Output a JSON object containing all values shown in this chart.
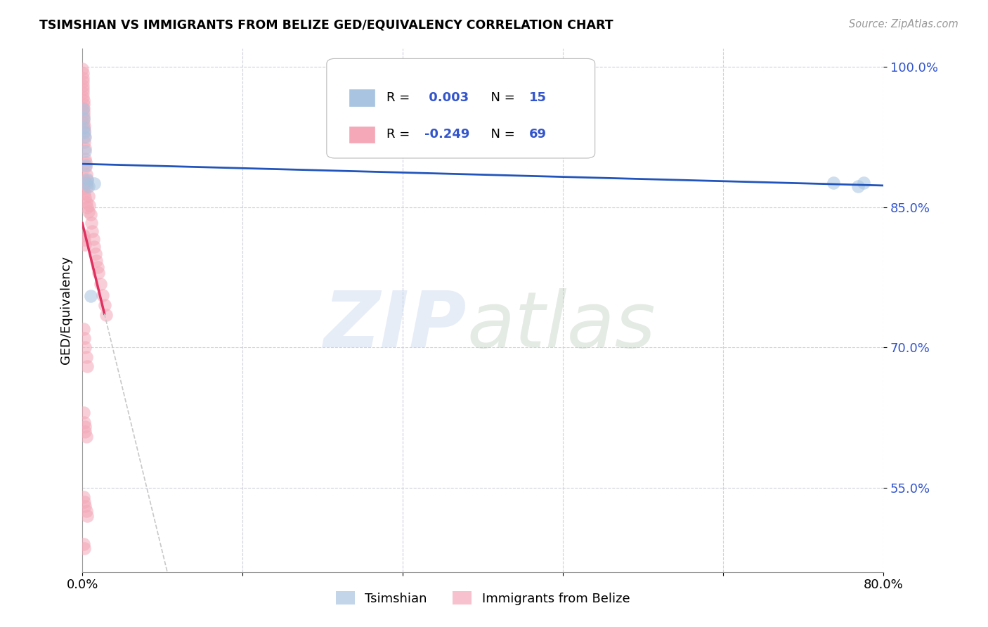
{
  "title": "TSIMSHIAN VS IMMIGRANTS FROM BELIZE GED/EQUIVALENCY CORRELATION CHART",
  "source": "Source: ZipAtlas.com",
  "ylabel": "GED/Equivalency",
  "xlim": [
    0.0,
    0.8
  ],
  "ylim": [
    0.46,
    1.02
  ],
  "ytick_labels": [
    "55.0%",
    "70.0%",
    "85.0%",
    "100.0%"
  ],
  "ytick_values": [
    0.55,
    0.7,
    0.85,
    1.0
  ],
  "xtick_labels": [
    "0.0%",
    "",
    "",
    "",
    "",
    "80.0%"
  ],
  "xtick_values": [
    0.0,
    0.16,
    0.32,
    0.48,
    0.64,
    0.8
  ],
  "blue_color": "#A8C4E0",
  "pink_color": "#F4A8B8",
  "trend_blue": "#2255BB",
  "trend_pink": "#E03060",
  "trend_gray": "#C8C8C8",
  "tsimshian_x": [
    0.0005,
    0.001,
    0.0015,
    0.002,
    0.0025,
    0.003,
    0.0035,
    0.004,
    0.005,
    0.006,
    0.008,
    0.012,
    0.75,
    0.775,
    0.78
  ],
  "tsimshian_y": [
    0.955,
    0.945,
    0.935,
    0.93,
    0.925,
    0.91,
    0.895,
    0.875,
    0.88,
    0.872,
    0.755,
    0.875,
    0.876,
    0.872,
    0.876
  ],
  "belize_x": [
    0.0002,
    0.0003,
    0.0004,
    0.0005,
    0.0006,
    0.0007,
    0.0008,
    0.0009,
    0.001,
    0.0011,
    0.0012,
    0.0013,
    0.0014,
    0.0015,
    0.0016,
    0.0017,
    0.0018,
    0.002,
    0.0022,
    0.0025,
    0.003,
    0.0032,
    0.0035,
    0.004,
    0.0045,
    0.005,
    0.006,
    0.007,
    0.008,
    0.009,
    0.01,
    0.011,
    0.012,
    0.013,
    0.014,
    0.015,
    0.016,
    0.018,
    0.02,
    0.022,
    0.024,
    0.001,
    0.001,
    0.0015,
    0.002,
    0.003,
    0.004,
    0.005,
    0.006,
    0.0015,
    0.002,
    0.003,
    0.001,
    0.002,
    0.003,
    0.004,
    0.005,
    0.001,
    0.002,
    0.0025,
    0.003,
    0.004,
    0.001,
    0.002,
    0.003,
    0.004,
    0.005,
    0.001,
    0.002
  ],
  "belize_y": [
    0.998,
    0.993,
    0.988,
    0.984,
    0.98,
    0.976,
    0.972,
    0.968,
    0.964,
    0.96,
    0.956,
    0.952,
    0.948,
    0.944,
    0.94,
    0.936,
    0.932,
    0.926,
    0.92,
    0.913,
    0.902,
    0.898,
    0.893,
    0.885,
    0.878,
    0.872,
    0.862,
    0.852,
    0.842,
    0.833,
    0.824,
    0.816,
    0.808,
    0.8,
    0.793,
    0.786,
    0.78,
    0.768,
    0.756,
    0.745,
    0.735,
    0.88,
    0.875,
    0.87,
    0.865,
    0.86,
    0.855,
    0.85,
    0.845,
    0.82,
    0.815,
    0.81,
    0.72,
    0.71,
    0.7,
    0.69,
    0.68,
    0.63,
    0.62,
    0.615,
    0.61,
    0.605,
    0.54,
    0.535,
    0.53,
    0.525,
    0.52,
    0.49,
    0.485
  ]
}
